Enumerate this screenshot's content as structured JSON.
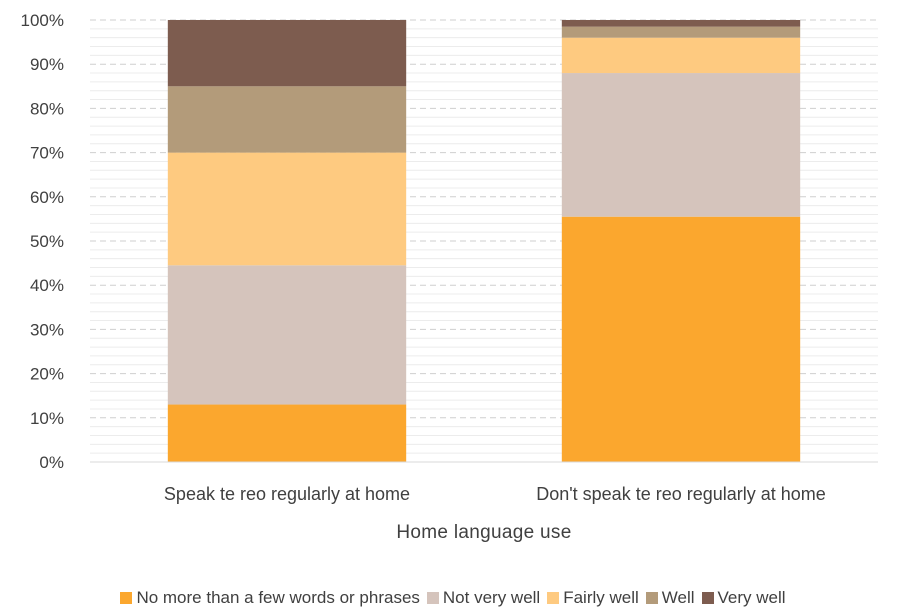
{
  "chart_data": {
    "type": "bar",
    "stacked": true,
    "percent": true,
    "categories": [
      "Speak te reo regularly at home",
      "Don't speak te reo regularly at home"
    ],
    "series": [
      {
        "name": "No more than a few words or phrases",
        "color": "#FBA72E",
        "values": [
          13,
          55.5
        ]
      },
      {
        "name": "Not very well",
        "color": "#D5C4BC",
        "values": [
          31.5,
          32.5
        ]
      },
      {
        "name": "Fairly well",
        "color": "#FECA80",
        "values": [
          25.5,
          8
        ]
      },
      {
        "name": "Well",
        "color": "#B39B7A",
        "values": [
          15,
          2.5
        ]
      },
      {
        "name": "Very well",
        "color": "#7D5C4F",
        "values": [
          15,
          1.5
        ]
      }
    ],
    "xlabel": "Home language use",
    "ylabel": "",
    "ylim": [
      0,
      100
    ],
    "yticks": [
      "0%",
      "10%",
      "20%",
      "30%",
      "40%",
      "50%",
      "60%",
      "70%",
      "80%",
      "90%",
      "100%"
    ],
    "grid": true,
    "legend_position": "bottom"
  }
}
